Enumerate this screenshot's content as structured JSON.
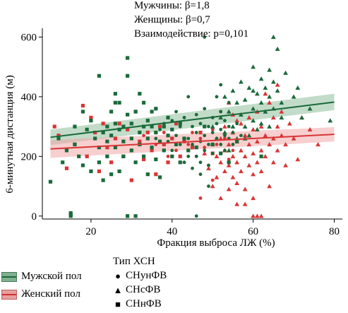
{
  "annotations": {
    "line1": "Мужчины: β=1,8",
    "line2": "Женщины: β=0,7",
    "line3": "Взаимодействие: p=0,101"
  },
  "legend": {
    "sex": [
      {
        "label": "Мужской пол",
        "color": "#1a6a3a",
        "band": "#7fb08f"
      },
      {
        "label": "Женский пол",
        "color": "#d93535",
        "band": "#e6a0a0"
      }
    ],
    "type_title": "Тип ХСН",
    "types": [
      {
        "label": "СНунФВ",
        "shape": "circle"
      },
      {
        "label": "СНсФВ",
        "shape": "triangle"
      },
      {
        "label": "СНнФВ",
        "shape": "square"
      }
    ]
  },
  "chart_data": {
    "type": "scatter",
    "xlabel": "Фракция выброса ЛЖ (%)",
    "ylabel": "6-минутная дистанция (м)",
    "xlim": [
      8,
      82
    ],
    "ylim": [
      -10,
      620
    ],
    "xticks": [
      20,
      40,
      60,
      80
    ],
    "yticks": [
      0,
      200,
      400,
      600
    ],
    "colors": {
      "male": "#1a6a3a",
      "female": "#d93535"
    },
    "regression": [
      {
        "series": "male",
        "x": [
          10,
          80
        ],
        "y": [
          264,
          382
        ],
        "ci_lo": [
          238,
          355
        ],
        "ci_hi": [
          290,
          410
        ]
      },
      {
        "series": "female",
        "x": [
          10,
          80
        ],
        "y": [
          225,
          274
        ],
        "ci_lo": [
          195,
          250
        ],
        "ci_hi": [
          255,
          298
        ]
      }
    ],
    "points": {
      "male": {
        "square": [
          [
            10,
            115
          ],
          [
            12,
            260
          ],
          [
            13,
            180
          ],
          [
            14,
            220
          ],
          [
            15,
            5
          ],
          [
            15,
            10
          ],
          [
            16,
            300
          ],
          [
            16,
            240
          ],
          [
            17,
            200
          ],
          [
            18,
            350
          ],
          [
            18,
            170
          ],
          [
            19,
            290
          ],
          [
            20,
            150
          ],
          [
            20,
            320
          ],
          [
            21,
            260
          ],
          [
            22,
            230
          ],
          [
            22,
            180
          ],
          [
            23,
            280
          ],
          [
            23,
            120
          ],
          [
            24,
            250
          ],
          [
            24,
            300
          ],
          [
            24,
            200
          ],
          [
            25,
            350
          ],
          [
            25,
            270
          ],
          [
            25,
            140
          ],
          [
            26,
            410
          ],
          [
            26,
            310
          ],
          [
            26,
            230
          ],
          [
            27,
            290
          ],
          [
            27,
            380
          ],
          [
            27,
            150
          ],
          [
            28,
            250
          ],
          [
            28,
            200
          ],
          [
            28,
            300
          ],
          [
            29,
            530
          ],
          [
            29,
            470
          ],
          [
            29,
            340
          ],
          [
            29,
            0
          ],
          [
            30,
            260
          ],
          [
            30,
            220
          ],
          [
            30,
            310
          ],
          [
            31,
            350
          ],
          [
            31,
            180
          ],
          [
            31,
            0
          ],
          [
            32,
            410
          ],
          [
            32,
            280
          ],
          [
            32,
            240
          ],
          [
            33,
            300
          ],
          [
            33,
            200
          ],
          [
            33,
            380
          ],
          [
            34,
            320
          ],
          [
            34,
            260
          ],
          [
            34,
            140
          ],
          [
            35,
            350
          ],
          [
            35,
            300
          ],
          [
            35,
            230
          ],
          [
            36,
            280
          ],
          [
            36,
            360
          ],
          [
            36,
            190
          ],
          [
            37,
            250
          ],
          [
            37,
            130
          ],
          [
            38,
            300
          ],
          [
            38,
            220
          ],
          [
            39,
            270
          ],
          [
            39,
            330
          ],
          [
            40,
            200
          ],
          [
            40,
            290
          ],
          [
            41,
            240
          ],
          [
            42,
            310
          ],
          [
            42,
            180
          ],
          [
            43,
            260
          ],
          [
            44,
            220
          ],
          [
            46,
            230
          ],
          [
            48,
            300
          ],
          [
            50,
            240
          ],
          [
            52,
            210
          ],
          [
            54,
            180
          ],
          [
            56,
            250
          ],
          [
            62,
            200
          ],
          [
            15,
            0
          ],
          [
            22,
            470
          ],
          [
            26,
            380
          ]
        ],
        "circle": [
          [
            35,
            230
          ],
          [
            36,
            260
          ],
          [
            37,
            290
          ],
          [
            38,
            310
          ],
          [
            39,
            250
          ],
          [
            40,
            320
          ],
          [
            40,
            220
          ],
          [
            41,
            270
          ],
          [
            41,
            350
          ],
          [
            42,
            300
          ],
          [
            42,
            240
          ],
          [
            43,
            180
          ],
          [
            43,
            330
          ],
          [
            44,
            260
          ],
          [
            44,
            400
          ],
          [
            44,
            200
          ],
          [
            45,
            300
          ],
          [
            45,
            240
          ],
          [
            46,
            340
          ],
          [
            46,
            280
          ],
          [
            46,
            200
          ],
          [
            47,
            310
          ],
          [
            47,
            250
          ],
          [
            47,
            180
          ],
          [
            48,
            270
          ],
          [
            48,
            360
          ],
          [
            48,
            220
          ],
          [
            49,
            300
          ],
          [
            49,
            240
          ],
          [
            49,
            170
          ],
          [
            50,
            280
          ],
          [
            50,
            330
          ],
          [
            50,
            210
          ],
          [
            51,
            260
          ],
          [
            51,
            310
          ],
          [
            51,
            400
          ],
          [
            52,
            240
          ],
          [
            52,
            290
          ],
          [
            52,
            350
          ],
          [
            53,
            270
          ],
          [
            53,
            220
          ],
          [
            53,
            320
          ],
          [
            54,
            300
          ],
          [
            54,
            260
          ],
          [
            55,
            280
          ],
          [
            55,
            240
          ],
          [
            56,
            310
          ],
          [
            57,
            270
          ],
          [
            49,
            100
          ],
          [
            47,
            140
          ],
          [
            45,
            160
          ],
          [
            46,
            0
          ],
          [
            48,
            600
          ],
          [
            52,
            440
          ],
          [
            54,
            380
          ]
        ],
        "triangle": [
          [
            50,
            300
          ],
          [
            51,
            260
          ],
          [
            52,
            330
          ],
          [
            53,
            280
          ],
          [
            53,
            400
          ],
          [
            54,
            350
          ],
          [
            54,
            220
          ],
          [
            55,
            420
          ],
          [
            55,
            300
          ],
          [
            56,
            380
          ],
          [
            56,
            260
          ],
          [
            57,
            340
          ],
          [
            57,
            450
          ],
          [
            58,
            300
          ],
          [
            58,
            390
          ],
          [
            59,
            430
          ],
          [
            59,
            270
          ],
          [
            60,
            360
          ],
          [
            60,
            500
          ],
          [
            60,
            320
          ],
          [
            61,
            410
          ],
          [
            61,
            290
          ],
          [
            62,
            460
          ],
          [
            62,
            380
          ],
          [
            63,
            350
          ],
          [
            63,
            430
          ],
          [
            64,
            400
          ],
          [
            64,
            490
          ],
          [
            64,
            300
          ],
          [
            65,
            600
          ],
          [
            65,
            450
          ],
          [
            65,
            360
          ],
          [
            66,
            420
          ],
          [
            66,
            560
          ],
          [
            67,
            380
          ],
          [
            67,
            330
          ],
          [
            68,
            480
          ],
          [
            70,
            400
          ],
          [
            71,
            430
          ],
          [
            72,
            330
          ],
          [
            74,
            360
          ],
          [
            79,
            320
          ],
          [
            58,
            260
          ],
          [
            60,
            420
          ],
          [
            62,
            310
          ]
        ]
      },
      "female": {
        "square": [
          [
            11,
            300
          ],
          [
            12,
            270
          ],
          [
            14,
            160
          ],
          [
            16,
            240
          ],
          [
            18,
            370
          ],
          [
            19,
            200
          ],
          [
            20,
            330
          ],
          [
            21,
            280
          ],
          [
            22,
            150
          ],
          [
            23,
            310
          ],
          [
            24,
            230
          ],
          [
            25,
            180
          ],
          [
            26,
            260
          ],
          [
            27,
            310
          ],
          [
            28,
            200
          ],
          [
            29,
            290
          ],
          [
            30,
            120
          ],
          [
            31,
            350
          ],
          [
            32,
            250
          ],
          [
            33,
            190
          ],
          [
            34,
            280
          ],
          [
            35,
            220
          ],
          [
            36,
            140
          ],
          [
            37,
            300
          ],
          [
            38,
            240
          ],
          [
            39,
            180
          ],
          [
            40,
            260
          ],
          [
            41,
            310
          ],
          [
            42,
            200
          ],
          [
            43,
            250
          ],
          [
            45,
            230
          ],
          [
            47,
            280
          ],
          [
            50,
            210
          ]
        ],
        "circle": [
          [
            36,
            240
          ],
          [
            38,
            280
          ],
          [
            39,
            200
          ],
          [
            40,
            260
          ],
          [
            41,
            220
          ],
          [
            42,
            300
          ],
          [
            43,
            180
          ],
          [
            44,
            240
          ],
          [
            45,
            280
          ],
          [
            46,
            200
          ],
          [
            47,
            260
          ],
          [
            48,
            230
          ],
          [
            49,
            170
          ],
          [
            50,
            290
          ],
          [
            51,
            240
          ],
          [
            52,
            210
          ],
          [
            53,
            260
          ],
          [
            54,
            190
          ],
          [
            55,
            220
          ],
          [
            33,
            270
          ],
          [
            47,
            60
          ],
          [
            50,
            120
          ],
          [
            52,
            350
          ]
        ],
        "triangle": [
          [
            48,
            210
          ],
          [
            49,
            160
          ],
          [
            50,
            240
          ],
          [
            50,
            100
          ],
          [
            51,
            200
          ],
          [
            51,
            130
          ],
          [
            52,
            260
          ],
          [
            52,
            180
          ],
          [
            52,
            60
          ],
          [
            53,
            220
          ],
          [
            53,
            150
          ],
          [
            53,
            300
          ],
          [
            54,
            240
          ],
          [
            54,
            170
          ],
          [
            54,
            90
          ],
          [
            55,
            280
          ],
          [
            55,
            200
          ],
          [
            55,
            130
          ],
          [
            55,
            340
          ],
          [
            56,
            250
          ],
          [
            56,
            180
          ],
          [
            56,
            110
          ],
          [
            56,
            40
          ],
          [
            57,
            310
          ],
          [
            57,
            220
          ],
          [
            57,
            150
          ],
          [
            58,
            270
          ],
          [
            58,
            200
          ],
          [
            58,
            90
          ],
          [
            59,
            330
          ],
          [
            59,
            240
          ],
          [
            59,
            170
          ],
          [
            60,
            290
          ],
          [
            60,
            210
          ],
          [
            60,
            140
          ],
          [
            60,
            60
          ],
          [
            61,
            350
          ],
          [
            61,
            250
          ],
          [
            61,
            180
          ],
          [
            61,
            0
          ],
          [
            62,
            300
          ],
          [
            62,
            220
          ],
          [
            62,
            150
          ],
          [
            63,
            410
          ],
          [
            63,
            270
          ],
          [
            63,
            200
          ],
          [
            64,
            380
          ],
          [
            64,
            240
          ],
          [
            64,
            100
          ],
          [
            65,
            330
          ],
          [
            65,
            260
          ],
          [
            65,
            180
          ],
          [
            66,
            440
          ],
          [
            66,
            300
          ],
          [
            66,
            220
          ],
          [
            67,
            350
          ],
          [
            67,
            270
          ],
          [
            68,
            240
          ],
          [
            68,
            170
          ],
          [
            69,
            310
          ],
          [
            70,
            260
          ],
          [
            71,
            190
          ],
          [
            72,
            330
          ],
          [
            74,
            290
          ],
          [
            76,
            240
          ],
          [
            62,
            0
          ],
          [
            60,
            0
          ],
          [
            58,
            40
          ],
          [
            56,
            320
          ],
          [
            54,
            380
          ]
        ]
      }
    }
  }
}
